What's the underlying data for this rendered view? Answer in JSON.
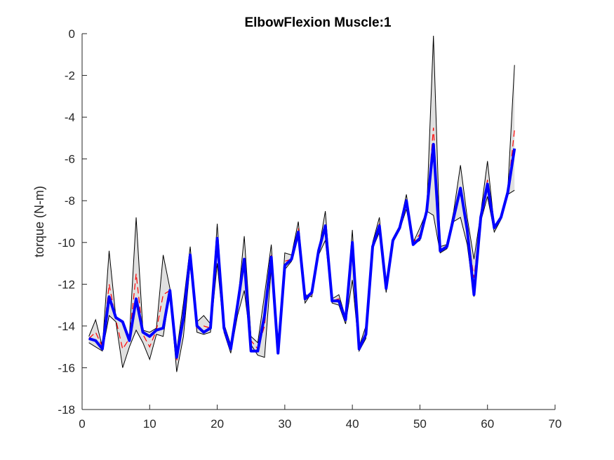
{
  "chart_data": {
    "type": "line",
    "title": "ElbowFlexion Muscle:1",
    "xlabel": "",
    "ylabel": "torque (N-m)",
    "xlim": [
      0,
      70
    ],
    "ylim": [
      -18,
      0
    ],
    "xticks": [
      "0",
      "10",
      "20",
      "30",
      "40",
      "50",
      "60",
      "70"
    ],
    "yticks": [
      "0",
      "-2",
      "-4",
      "-6",
      "-8",
      "-10",
      "-12",
      "-14",
      "-16",
      "-18"
    ],
    "grid": false,
    "colors": {
      "band_fill": "#e0e0e0",
      "band_edge": "#000000",
      "mean_line": "#0000ff",
      "dashed_line": "#ff0000",
      "axis": "#262626"
    },
    "x": [
      1,
      2,
      3,
      4,
      5,
      6,
      7,
      8,
      9,
      10,
      11,
      12,
      13,
      14,
      15,
      16,
      17,
      18,
      19,
      20,
      21,
      22,
      23,
      24,
      25,
      26,
      27,
      28,
      29,
      30,
      31,
      32,
      33,
      34,
      35,
      36,
      37,
      38,
      39,
      40,
      41,
      42,
      43,
      44,
      45,
      46,
      47,
      48,
      49,
      50,
      51,
      52,
      53,
      54,
      55,
      56,
      57,
      58,
      59,
      60,
      61,
      62,
      63,
      64
    ],
    "series": [
      {
        "style": "band_upper",
        "values": [
          -14.5,
          -13.7,
          -15.0,
          -10.4,
          -13.6,
          -13.8,
          -14.5,
          -8.8,
          -14.2,
          -14.3,
          -14.1,
          -10.6,
          -12.2,
          -15.2,
          -12.9,
          -10.2,
          -13.8,
          -13.5,
          -13.9,
          -9.1,
          -13.9,
          -14.9,
          -13.0,
          -9.7,
          -14.5,
          -14.8,
          -12.5,
          -10.1,
          -15.1,
          -10.5,
          -10.6,
          -9.0,
          -12.5,
          -12.6,
          -10.4,
          -8.5,
          -12.7,
          -12.5,
          -13.6,
          -9.4,
          -15.0,
          -14.0,
          -10.0,
          -8.8,
          -12.1,
          -9.8,
          -9.2,
          -7.7,
          -10.0,
          -9.3,
          -8.5,
          -0.1,
          -10.2,
          -10.1,
          -8.5,
          -6.3,
          -8.8,
          -10.8,
          -8.6,
          -6.1,
          -9.2,
          -8.8,
          -7.5,
          -1.5
        ]
      },
      {
        "style": "band_lower",
        "values": [
          -14.8,
          -15.0,
          -15.2,
          -13.5,
          -13.8,
          -16.0,
          -15.0,
          -14.2,
          -14.8,
          -15.6,
          -14.4,
          -14.5,
          -12.4,
          -16.2,
          -14.5,
          -11.0,
          -14.3,
          -14.4,
          -14.3,
          -11.0,
          -14.3,
          -15.3,
          -13.5,
          -12.3,
          -14.9,
          -15.4,
          -15.5,
          -11.2,
          -15.3,
          -11.3,
          -10.9,
          -9.7,
          -12.9,
          -12.4,
          -10.6,
          -9.9,
          -12.9,
          -13.0,
          -13.9,
          -11.8,
          -15.2,
          -14.6,
          -10.3,
          -9.5,
          -12.4,
          -10.0,
          -9.4,
          -8.4,
          -10.1,
          -9.9,
          -8.5,
          -8.7,
          -10.5,
          -10.3,
          -9.0,
          -8.8,
          -10.1,
          -12.6,
          -9.0,
          -7.8,
          -9.5,
          -8.9,
          -7.7,
          -7.5
        ]
      },
      {
        "style": "dashed",
        "values": [
          -14.6,
          -14.3,
          -15.0,
          -12.0,
          -13.7,
          -15.1,
          -14.6,
          -11.5,
          -14.4,
          -15.0,
          -14.2,
          -12.5,
          -12.3,
          -15.7,
          -13.7,
          -10.6,
          -14.1,
          -14.0,
          -14.1,
          -10.0,
          -14.1,
          -15.1,
          -13.2,
          -11.0,
          -14.7,
          -15.1,
          -14.0,
          -10.6,
          -15.2,
          -10.9,
          -10.8,
          -9.3,
          -12.7,
          -12.5,
          -10.5,
          -9.2,
          -12.8,
          -12.7,
          -13.7,
          -10.6,
          -15.1,
          -14.3,
          -10.1,
          -9.1,
          -12.2,
          -9.9,
          -9.3,
          -8.0,
          -10.0,
          -9.6,
          -8.5,
          -4.5,
          -10.3,
          -10.2,
          -8.7,
          -7.5,
          -9.4,
          -11.7,
          -8.8,
          -7.0,
          -9.3,
          -8.8,
          -7.6,
          -4.6
        ]
      },
      {
        "style": "mean",
        "values": [
          -14.6,
          -14.7,
          -15.1,
          -12.6,
          -13.6,
          -13.8,
          -14.7,
          -12.7,
          -14.3,
          -14.5,
          -14.2,
          -14.1,
          -12.3,
          -15.5,
          -13.6,
          -10.6,
          -14.0,
          -14.3,
          -14.1,
          -9.8,
          -14.1,
          -15.1,
          -13.0,
          -10.8,
          -15.2,
          -15.2,
          -13.5,
          -10.7,
          -15.3,
          -11.1,
          -10.8,
          -9.5,
          -12.7,
          -12.4,
          -10.4,
          -9.2,
          -12.8,
          -12.8,
          -13.7,
          -10.0,
          -15.1,
          -14.4,
          -10.2,
          -9.2,
          -12.2,
          -9.9,
          -9.3,
          -8.0,
          -10.1,
          -9.8,
          -8.5,
          -5.3,
          -10.4,
          -10.2,
          -8.8,
          -7.4,
          -9.4,
          -12.5,
          -8.8,
          -7.2,
          -9.3,
          -8.8,
          -7.6,
          -5.5
        ]
      }
    ]
  }
}
